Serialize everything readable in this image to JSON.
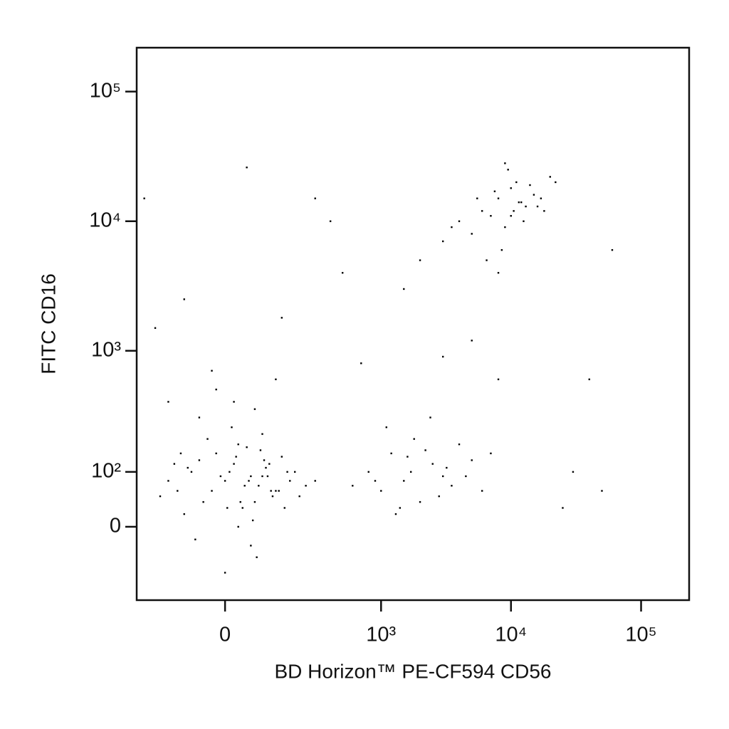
{
  "chart_data": {
    "type": "scatter",
    "color": "#000000",
    "scale": "biexponential",
    "x_label": "BD Horizon™ PE-CF594 CD56",
    "y_label": "FITC CD16",
    "xlim": [
      -290,
      234000
    ],
    "ylim": [
      -150,
      218000
    ],
    "xticks": [
      0,
      {
        "value": 1000,
        "label": "10³"
      },
      {
        "value": 10000,
        "label": "10⁴"
      },
      {
        "value": 100000,
        "label": "10⁵"
      }
    ],
    "yticks": [
      0,
      {
        "value": 100,
        "label": "10²"
      },
      {
        "value": 1000,
        "label": "10³"
      },
      {
        "value": 10000,
        "label": "10⁴"
      },
      {
        "value": 100000,
        "label": "10⁵"
      }
    ],
    "x": [
      -120,
      -80,
      -50,
      -20,
      0,
      20,
      40,
      60,
      80,
      100,
      120,
      150,
      -150,
      -100,
      -60,
      -30,
      10,
      30,
      50,
      70,
      90,
      110,
      140,
      180,
      220,
      -90,
      -40,
      5,
      25,
      45,
      65,
      85,
      105,
      130,
      170,
      250,
      -180,
      -130,
      -70,
      -10,
      15,
      35,
      55,
      75,
      95,
      115,
      160,
      200,
      300,
      -60,
      -20,
      0,
      30,
      60,
      90,
      -110,
      -30,
      20,
      70,
      130,
      6000,
      8000,
      10000,
      12000,
      15000,
      9000,
      7000,
      11000,
      13000,
      5000,
      4000,
      3000,
      17000,
      20000,
      8500,
      9500,
      10500,
      7500,
      14000,
      6500,
      12500,
      16000,
      3500,
      11500,
      9000,
      8000,
      18000,
      22000,
      5500,
      10000,
      800,
      1000,
      1200,
      1500,
      1800,
      2000,
      2500,
      3000,
      3500,
      4000,
      5000,
      6000,
      1100,
      1400,
      1700,
      2200,
      2800,
      900,
      1300,
      1600,
      2400,
      3200,
      4500,
      7000,
      600,
      -250,
      -200,
      -100,
      50,
      300,
      500,
      700,
      1500,
      3000,
      8000,
      30000,
      50000,
      60000,
      40000,
      25000,
      -150,
      150,
      400,
      5000,
      2000
    ],
    "y": [
      60,
      100,
      40,
      150,
      80,
      120,
      30,
      90,
      70,
      110,
      50,
      140,
      80,
      20,
      130,
      60,
      100,
      0,
      170,
      40,
      90,
      120,
      60,
      80,
      50,
      110,
      200,
      30,
      140,
      70,
      10,
      160,
      90,
      60,
      100,
      70,
      50,
      120,
      -20,
      90,
      250,
      40,
      80,
      -50,
      130,
      60,
      30,
      100,
      80,
      300,
      500,
      -80,
      180,
      -30,
      220,
      150,
      700,
      400,
      350,
      600,
      12000,
      15000,
      18000,
      14000,
      16000,
      9000,
      11000,
      20000,
      13000,
      8000,
      10000,
      7000,
      15000,
      22000,
      6000,
      25000,
      12000,
      17000,
      19000,
      5000,
      10000,
      13000,
      9000,
      14000,
      28000,
      4000,
      12000,
      20000,
      15000,
      11000,
      100,
      60,
      150,
      80,
      200,
      40,
      120,
      90,
      70,
      180,
      130,
      60,
      250,
      30,
      100,
      160,
      50,
      80,
      20,
      140,
      300,
      110,
      90,
      150,
      70,
      15000,
      1500,
      2500,
      26000,
      15000,
      4000,
      800,
      3000,
      900,
      600,
      100,
      60,
      6000,
      600,
      30,
      400,
      1800,
      10000,
      1200,
      5000
    ]
  }
}
